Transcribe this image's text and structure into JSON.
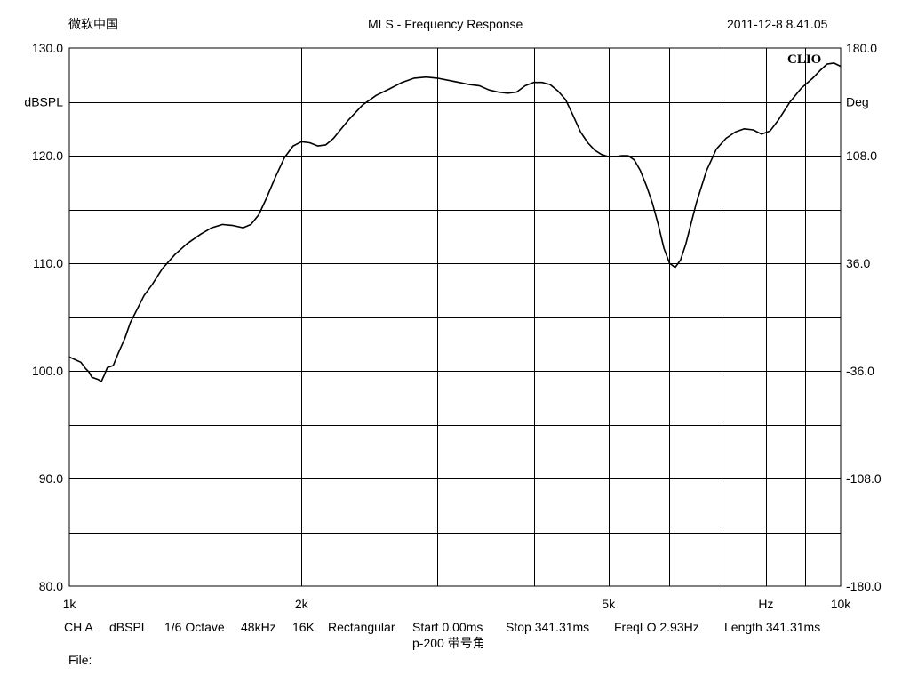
{
  "header": {
    "company": "微软中国",
    "title": "MLS - Frequency Response",
    "timestamp": "2011-12-8 8.41.05"
  },
  "logo": {
    "text": "CLIO"
  },
  "footer": {
    "items": [
      "CH A",
      "dBSPL",
      "1/6 Octave",
      "48kHz",
      "16K",
      "Rectangular",
      "Start 0.00ms",
      "Stop 341.31ms",
      "FreqLO 2.93Hz",
      "Length 341.31ms"
    ],
    "description": "p-200 带号角",
    "file_label": "File:"
  },
  "chart_data": {
    "type": "line",
    "title": "MLS - Frequency Response",
    "xscale": "log",
    "xlim": [
      1000,
      10000
    ],
    "x_tick_labels": [
      {
        "value": 1000,
        "label": "1k"
      },
      {
        "value": 2000,
        "label": "2k"
      },
      {
        "value": 5000,
        "label": "5k"
      },
      {
        "value": 8000,
        "label": "Hz"
      },
      {
        "value": 10000,
        "label": "10k"
      }
    ],
    "x_gridlines": [
      2000,
      3000,
      4000,
      5000,
      6000,
      7000,
      8000,
      9000
    ],
    "ylim_left": [
      80,
      130
    ],
    "ylabel_left": "dBSPL",
    "y_left_ticks": [
      {
        "value": 80,
        "label": "80.0"
      },
      {
        "value": 90,
        "label": "90.0"
      },
      {
        "value": 100,
        "label": "100.0"
      },
      {
        "value": 110,
        "label": "110.0"
      },
      {
        "value": 120,
        "label": "120.0"
      },
      {
        "value": 130,
        "label": "130.0"
      }
    ],
    "ylim_right": [
      -180,
      180
    ],
    "ylabel_right": "Deg",
    "y_right_ticks": [
      {
        "value": -180,
        "label": "-180.0"
      },
      {
        "value": -108,
        "label": "-108.0"
      },
      {
        "value": -36,
        "label": "-36.0"
      },
      {
        "value": 36,
        "label": "36.0"
      },
      {
        "value": 108,
        "label": "108.0"
      },
      {
        "value": 180,
        "label": "180.0"
      }
    ],
    "grid": true,
    "y_gridline_step": 5,
    "series": [
      {
        "color": "#000000",
        "points": [
          [
            1000,
            101.3
          ],
          [
            1020,
            101.0
          ],
          [
            1035,
            100.8
          ],
          [
            1050,
            100.2
          ],
          [
            1060,
            99.9
          ],
          [
            1070,
            99.4
          ],
          [
            1090,
            99.2
          ],
          [
            1100,
            99.0
          ],
          [
            1110,
            99.6
          ],
          [
            1120,
            100.3
          ],
          [
            1140,
            100.5
          ],
          [
            1160,
            101.8
          ],
          [
            1180,
            103.0
          ],
          [
            1200,
            104.5
          ],
          [
            1220,
            105.5
          ],
          [
            1250,
            107.0
          ],
          [
            1280,
            108.0
          ],
          [
            1320,
            109.5
          ],
          [
            1370,
            110.8
          ],
          [
            1420,
            111.8
          ],
          [
            1480,
            112.7
          ],
          [
            1530,
            113.3
          ],
          [
            1580,
            113.6
          ],
          [
            1630,
            113.5
          ],
          [
            1680,
            113.3
          ],
          [
            1720,
            113.6
          ],
          [
            1760,
            114.5
          ],
          [
            1800,
            116.0
          ],
          [
            1850,
            118.0
          ],
          [
            1900,
            119.8
          ],
          [
            1950,
            120.9
          ],
          [
            2000,
            121.3
          ],
          [
            2050,
            121.2
          ],
          [
            2100,
            120.9
          ],
          [
            2150,
            121.0
          ],
          [
            2200,
            121.6
          ],
          [
            2300,
            123.3
          ],
          [
            2400,
            124.7
          ],
          [
            2500,
            125.6
          ],
          [
            2600,
            126.2
          ],
          [
            2700,
            126.8
          ],
          [
            2800,
            127.2
          ],
          [
            2900,
            127.3
          ],
          [
            3000,
            127.2
          ],
          [
            3100,
            127.0
          ],
          [
            3200,
            126.8
          ],
          [
            3300,
            126.6
          ],
          [
            3400,
            126.5
          ],
          [
            3500,
            126.1
          ],
          [
            3600,
            125.9
          ],
          [
            3700,
            125.8
          ],
          [
            3800,
            125.9
          ],
          [
            3900,
            126.5
          ],
          [
            4000,
            126.8
          ],
          [
            4100,
            126.8
          ],
          [
            4200,
            126.6
          ],
          [
            4300,
            126.0
          ],
          [
            4400,
            125.2
          ],
          [
            4500,
            123.7
          ],
          [
            4600,
            122.2
          ],
          [
            4700,
            121.2
          ],
          [
            4800,
            120.5
          ],
          [
            4900,
            120.1
          ],
          [
            5000,
            119.9
          ],
          [
            5100,
            119.9
          ],
          [
            5200,
            120.0
          ],
          [
            5300,
            120.0
          ],
          [
            5400,
            119.6
          ],
          [
            5500,
            118.6
          ],
          [
            5600,
            117.2
          ],
          [
            5700,
            115.6
          ],
          [
            5800,
            113.6
          ],
          [
            5900,
            111.4
          ],
          [
            6000,
            110.0
          ],
          [
            6100,
            109.6
          ],
          [
            6200,
            110.3
          ],
          [
            6300,
            111.8
          ],
          [
            6500,
            115.6
          ],
          [
            6700,
            118.6
          ],
          [
            6900,
            120.6
          ],
          [
            7100,
            121.6
          ],
          [
            7300,
            122.2
          ],
          [
            7500,
            122.5
          ],
          [
            7700,
            122.4
          ],
          [
            7900,
            122.0
          ],
          [
            8100,
            122.3
          ],
          [
            8300,
            123.3
          ],
          [
            8600,
            125.0
          ],
          [
            8900,
            126.3
          ],
          [
            9200,
            127.2
          ],
          [
            9400,
            127.9
          ],
          [
            9600,
            128.5
          ],
          [
            9800,
            128.6
          ],
          [
            10000,
            128.3
          ]
        ]
      }
    ]
  }
}
